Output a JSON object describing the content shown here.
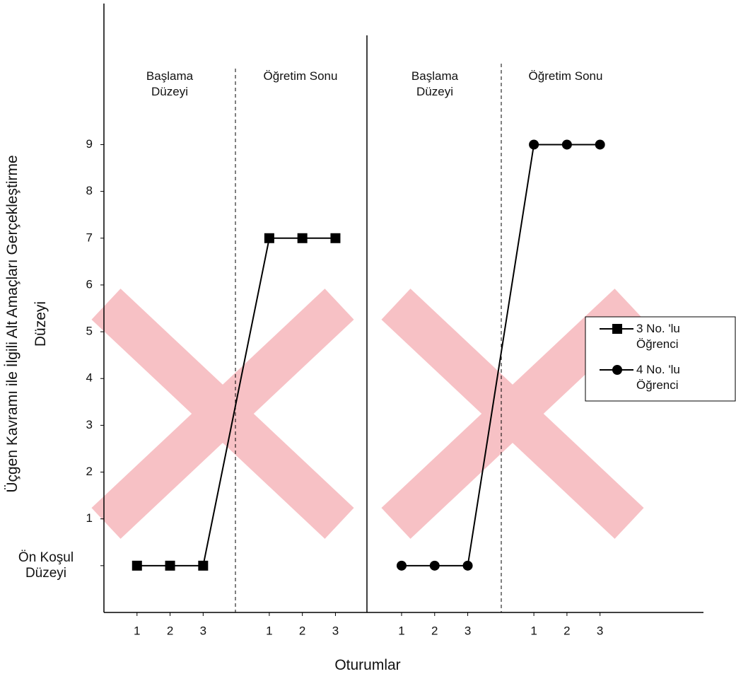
{
  "chart_data": {
    "type": "line",
    "y_label": "Üçgen Kavramı ile İlgili Alt Amaçları Gerçekleştirme Düzeyi",
    "x_label": "Oturumlar",
    "phases": [
      "Başlama Düzeyi",
      "Öğretim Sonu",
      "Başlama Düzeyi",
      "Öğretim Sonu"
    ],
    "xlim": [
      0,
      18
    ],
    "xticks": [
      {
        "value": 1,
        "label": "1"
      },
      {
        "value": 2,
        "label": "2"
      },
      {
        "value": 3,
        "label": "3"
      },
      {
        "value": 5,
        "label": "1"
      },
      {
        "value": 6,
        "label": "2"
      },
      {
        "value": 7,
        "label": "3"
      },
      {
        "value": 9,
        "label": "1"
      },
      {
        "value": 10,
        "label": "2"
      },
      {
        "value": 11,
        "label": "3"
      },
      {
        "value": 13,
        "label": "1"
      },
      {
        "value": 14,
        "label": "2"
      },
      {
        "value": 15,
        "label": "3"
      }
    ],
    "ylim": [
      -1,
      12
    ],
    "yticks": [
      {
        "value": 0,
        "label": "Ön Koşul Düzeyi"
      },
      1,
      2,
      3,
      4,
      5,
      6,
      7,
      8,
      9
    ],
    "series": [
      {
        "name": "3 No. 'lu Öğrenci",
        "color": "#000000",
        "marker": "square",
        "x": [
          1,
          2,
          3,
          5,
          6,
          7
        ],
        "values": [
          0,
          0,
          0,
          7,
          7,
          7
        ]
      },
      {
        "name": "4 No. 'lu Öğrenci",
        "color": "#000000",
        "marker": "circle",
        "x": [
          9,
          10,
          11,
          13,
          14,
          15
        ],
        "values": [
          0,
          0,
          0,
          9,
          9,
          9
        ]
      }
    ]
  }
}
